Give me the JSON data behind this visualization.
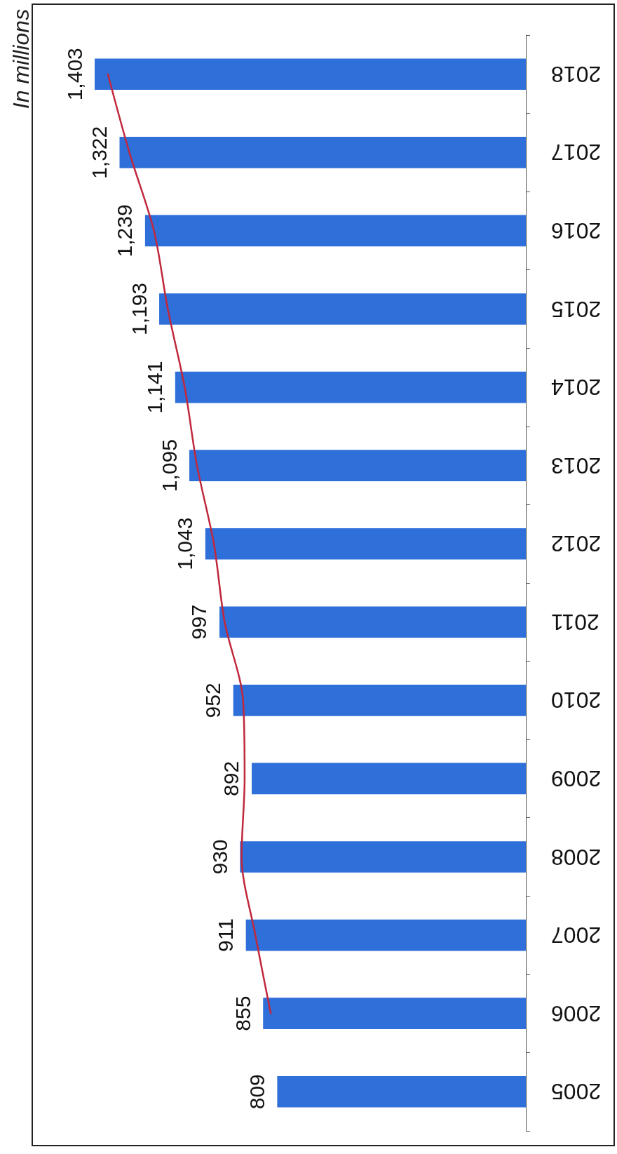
{
  "chart_data": {
    "type": "bar",
    "orientation": "horizontal",
    "ylabel": "In millions",
    "categories": [
      "2018",
      "2017",
      "2016",
      "2015",
      "2014",
      "2013",
      "2012",
      "2011",
      "2010",
      "2009",
      "2008",
      "2007",
      "2006",
      "2005"
    ],
    "xlim": [
      1403,
      0
    ],
    "tick_labels": "y",
    "series": [
      {
        "color": "#2f6fd9",
        "values": [
          1403,
          1322,
          1239,
          1193,
          1141,
          1095,
          1043,
          997,
          952,
          892,
          930,
          911,
          855,
          809
        ],
        "value_labels": [
          "1,403",
          "1,322",
          "1,239",
          "1,193",
          "1,141",
          "1,095",
          "1,043",
          "997",
          "952",
          "892",
          "930",
          "911",
          "855",
          "809"
        ]
      },
      {
        "type": "line",
        "color": "#c0283c",
        "values": [
          1360,
          1290,
          1210,
          1165,
          1110,
          1070,
          1015,
          980,
          920,
          915,
          925,
          880,
          830,
          null
        ]
      }
    ]
  }
}
